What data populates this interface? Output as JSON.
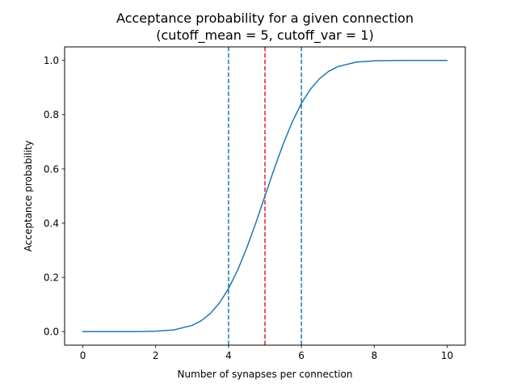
{
  "chart_data": {
    "type": "line",
    "title_line1": "Acceptance probability for a given connection",
    "title_line2": "(cutoff_mean = 5, cutoff_var = 1)",
    "xlabel": "Number of synapses per connection",
    "ylabel": "Acceptance probability",
    "xlim": [
      -0.5,
      10.5
    ],
    "ylim": [
      -0.05,
      1.05
    ],
    "xticks": [
      0,
      2,
      4,
      6,
      8,
      10
    ],
    "xtick_labels": [
      "0",
      "2",
      "4",
      "6",
      "8",
      "10"
    ],
    "yticks": [
      0.0,
      0.2,
      0.4,
      0.6,
      0.8,
      1.0
    ],
    "ytick_labels": [
      "0.0",
      "0.2",
      "0.4",
      "0.6",
      "0.8",
      "1.0"
    ],
    "grid": false,
    "series": [
      {
        "color": "#1f77b4",
        "x": [
          0,
          0.5,
          1,
          1.5,
          2,
          2.5,
          3,
          3.25,
          3.5,
          3.75,
          4,
          4.25,
          4.5,
          4.75,
          5,
          5.25,
          5.5,
          5.75,
          6,
          6.25,
          6.5,
          6.75,
          7,
          7.5,
          8,
          8.5,
          9,
          9.5,
          10
        ],
        "y": [
          0.0,
          0.0,
          0.0,
          0.0001,
          0.0013,
          0.0062,
          0.0228,
          0.0401,
          0.0668,
          0.1056,
          0.1587,
          0.2266,
          0.3085,
          0.4013,
          0.5,
          0.5987,
          0.6915,
          0.7734,
          0.8413,
          0.8944,
          0.9332,
          0.9599,
          0.9772,
          0.9938,
          0.9987,
          0.9998,
          1.0,
          1.0,
          1.0
        ]
      }
    ],
    "vlines": [
      {
        "x": 4,
        "color": "#1f77b4",
        "style": "dashed"
      },
      {
        "x": 5,
        "color": "#d62728",
        "style": "dashed"
      },
      {
        "x": 6,
        "color": "#1f77b4",
        "style": "dashed"
      }
    ]
  }
}
